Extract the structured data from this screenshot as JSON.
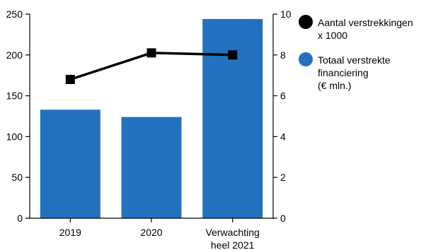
{
  "chart_data": {
    "type": "bar",
    "categories": [
      [
        "2019"
      ],
      [
        "2020"
      ],
      [
        "Verwachting",
        "heel 2021"
      ]
    ],
    "series": [
      {
        "name": "Totaal verstrekte financiering (€ mln.)",
        "legend_lines": [
          "Totaal verstrekte",
          "financiering",
          "(€ mln.)"
        ],
        "type": "bar",
        "axis": "left",
        "color": "#2372c0",
        "values": [
          133,
          124,
          244
        ]
      },
      {
        "name": "Aantal verstrekkingen x 1000",
        "legend_lines": [
          "Aantal verstrekkingen",
          "x 1000"
        ],
        "type": "line",
        "axis": "right",
        "color": "#000000",
        "marker": "square",
        "values": [
          6.8,
          8.1,
          8.0
        ]
      }
    ],
    "y_left": {
      "min": 0,
      "max": 250,
      "ticks": [
        0,
        50,
        100,
        150,
        200,
        250
      ]
    },
    "y_right": {
      "min": 0,
      "max": 10,
      "ticks": [
        0,
        2,
        4,
        6,
        8,
        10
      ]
    },
    "legend": {
      "placement": "right",
      "order": [
        "Aantal verstrekkingen x 1000",
        "Totaal verstrekte financiering (€ mln.)"
      ]
    },
    "grid": false
  }
}
